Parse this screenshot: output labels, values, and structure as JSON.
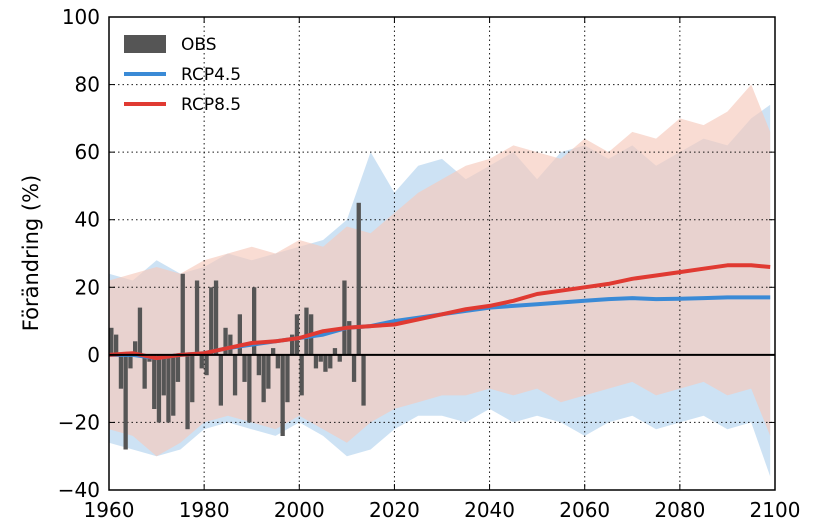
{
  "chart_data": {
    "type": "line",
    "title": "",
    "xlabel": "",
    "ylabel": "Förändring (%)",
    "xlim": [
      1960,
      2100
    ],
    "ylim": [
      -40,
      100
    ],
    "xticks": [
      1960,
      1980,
      2000,
      2020,
      2040,
      2060,
      2080,
      2100
    ],
    "yticks": [
      -40,
      -20,
      0,
      20,
      40,
      60,
      80,
      100
    ],
    "grid": true,
    "legend_position": "top-left",
    "zero_line": 0,
    "legend": [
      {
        "label": "OBS",
        "kind": "bar",
        "color": "#555555"
      },
      {
        "label": "RCP4.5",
        "kind": "line",
        "color": "#3a8ad6"
      },
      {
        "label": "RCP8.5",
        "kind": "line",
        "color": "#e03a32"
      }
    ],
    "obs": {
      "name": "OBS",
      "color": "#555555",
      "x": [
        1960,
        1961,
        1962,
        1963,
        1964,
        1965,
        1966,
        1967,
        1968,
        1969,
        1970,
        1971,
        1972,
        1973,
        1974,
        1975,
        1976,
        1977,
        1978,
        1979,
        1980,
        1981,
        1982,
        1983,
        1984,
        1985,
        1986,
        1987,
        1988,
        1989,
        1990,
        1991,
        1992,
        1993,
        1994,
        1995,
        1996,
        1997,
        1998,
        1999,
        2000,
        2001,
        2002,
        2003,
        2004,
        2005,
        2006,
        2007,
        2008,
        2009,
        2010,
        2011,
        2012,
        2013
      ],
      "values": [
        8,
        6,
        -10,
        -28,
        -4,
        4,
        14,
        -10,
        -2,
        -16,
        -20,
        -12,
        -20,
        -18,
        -8,
        24,
        -22,
        -14,
        22,
        -4,
        -6,
        20,
        22,
        -15,
        8,
        6,
        -12,
        12,
        -8,
        -20,
        20,
        -6,
        -14,
        -10,
        2,
        -4,
        -24,
        -14,
        6,
        12,
        -12,
        14,
        12,
        -4,
        -2,
        -5,
        -4,
        2,
        -2,
        22,
        10,
        -8,
        45,
        -15
      ]
    },
    "series": [
      {
        "name": "RCP4.5",
        "color": "#3a8ad6",
        "band_color": "#bcd8f0",
        "x": [
          1960,
          1965,
          1970,
          1975,
          1980,
          1985,
          1990,
          1995,
          2000,
          2005,
          2010,
          2015,
          2020,
          2025,
          2030,
          2035,
          2040,
          2045,
          2050,
          2055,
          2060,
          2065,
          2070,
          2075,
          2080,
          2085,
          2090,
          2095,
          2099
        ],
        "values": [
          0,
          0,
          -1,
          0,
          0.5,
          2,
          3,
          4,
          5,
          6,
          8,
          8.5,
          10,
          11,
          12,
          13,
          14,
          14.5,
          15,
          15.5,
          16,
          16.5,
          16.8,
          16.5,
          16.6,
          16.8,
          17,
          17,
          17
        ],
        "upper": [
          24,
          22,
          28,
          24,
          26,
          30,
          28,
          30,
          32,
          34,
          40,
          60,
          48,
          56,
          58,
          52,
          56,
          60,
          52,
          60,
          62,
          58,
          62,
          56,
          60,
          64,
          62,
          70,
          74
        ],
        "lower": [
          -26,
          -28,
          -30,
          -28,
          -22,
          -20,
          -22,
          -24,
          -20,
          -24,
          -30,
          -28,
          -22,
          -18,
          -18,
          -20,
          -16,
          -20,
          -18,
          -20,
          -24,
          -20,
          -18,
          -22,
          -20,
          -18,
          -22,
          -20,
          -36
        ]
      },
      {
        "name": "RCP8.5",
        "color": "#e03a32",
        "band_color": "#f6c9bc",
        "x": [
          1960,
          1965,
          1970,
          1975,
          1980,
          1985,
          1990,
          1995,
          2000,
          2005,
          2010,
          2015,
          2020,
          2025,
          2030,
          2035,
          2040,
          2045,
          2050,
          2055,
          2060,
          2065,
          2070,
          2075,
          2080,
          2085,
          2090,
          2095,
          2099
        ],
        "values": [
          0,
          0.5,
          -1,
          0,
          0.5,
          2,
          3.5,
          4,
          5,
          7,
          8,
          8.5,
          9,
          10.5,
          12,
          13.5,
          14.5,
          16,
          18,
          19,
          20,
          21,
          22.5,
          23.5,
          24.5,
          25.5,
          26.5,
          26.5,
          26
        ],
        "upper": [
          22,
          24,
          26,
          24,
          28,
          30,
          32,
          30,
          34,
          32,
          38,
          36,
          42,
          48,
          52,
          56,
          58,
          62,
          60,
          58,
          64,
          60,
          66,
          64,
          70,
          68,
          72,
          80,
          66
        ],
        "lower": [
          -22,
          -24,
          -30,
          -26,
          -20,
          -18,
          -20,
          -22,
          -18,
          -22,
          -26,
          -20,
          -16,
          -14,
          -12,
          -12,
          -10,
          -12,
          -10,
          -14,
          -12,
          -10,
          -8,
          -12,
          -10,
          -8,
          -12,
          -10,
          -24
        ]
      }
    ]
  }
}
